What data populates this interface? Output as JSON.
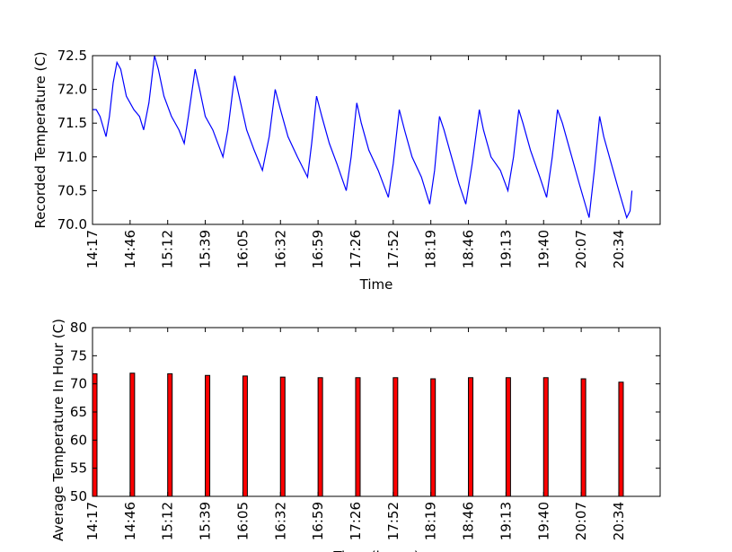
{
  "chart_data": [
    {
      "type": "line",
      "ylabel": "Recorded Temperature (C)",
      "xlabel": "Time",
      "color": "#0000ff",
      "xlim": [
        0,
        151
      ],
      "ylim": [
        70,
        72.5
      ],
      "xticks": [
        {
          "value": 0,
          "label": "14:17"
        },
        {
          "value": 10,
          "label": "14:46"
        },
        {
          "value": 20,
          "label": "15:12"
        },
        {
          "value": 30,
          "label": "15:39"
        },
        {
          "value": 40,
          "label": "16:05"
        },
        {
          "value": 50,
          "label": "16:32"
        },
        {
          "value": 60,
          "label": "16:59"
        },
        {
          "value": 70,
          "label": "17:26"
        },
        {
          "value": 80,
          "label": "17:52"
        },
        {
          "value": 90,
          "label": "18:19"
        },
        {
          "value": 100,
          "label": "18:46"
        },
        {
          "value": 110,
          "label": "19:13"
        },
        {
          "value": 120,
          "label": "19:40"
        },
        {
          "value": 130,
          "label": "20:07"
        },
        {
          "value": 140,
          "label": "20:34"
        }
      ],
      "yticks": [
        {
          "value": 70,
          "label": "70.0"
        },
        70.5,
        {
          "value": 71,
          "label": "71.0"
        },
        71.5,
        {
          "value": 72,
          "label": "72.0"
        },
        72.5
      ],
      "x": [
        0,
        1,
        2,
        3.6,
        4.5,
        5.5,
        6.5,
        7.5,
        9,
        11,
        12.5,
        13.6,
        15,
        16.5,
        17.5,
        19,
        21,
        23,
        24.4,
        25.5,
        27.3,
        28.5,
        30,
        32,
        34.7,
        36,
        37.8,
        39,
        41,
        43,
        45.2,
        47,
        48.6,
        50,
        52,
        54.5,
        57.2,
        58.3,
        59.6,
        61,
        63,
        65,
        67.5,
        68.8,
        70.3,
        71.5,
        73.5,
        76,
        78.7,
        80,
        81.6,
        83,
        85,
        87.5,
        89.7,
        91,
        92.3,
        93.5,
        95.5,
        97.5,
        99.3,
        101,
        102.9,
        104,
        106,
        108.5,
        110.5,
        112,
        113.4,
        114.5,
        116.5,
        119,
        120.8,
        122.3,
        123.7,
        125,
        127,
        129.5,
        132.1,
        133.5,
        134.9,
        136,
        138,
        140,
        142.1,
        143,
        143.5
      ],
      "values": [
        71.7,
        71.7,
        71.6,
        71.3,
        71.6,
        72.1,
        72.4,
        72.3,
        71.9,
        71.7,
        71.6,
        71.4,
        71.8,
        72.5,
        72.3,
        71.9,
        71.6,
        71.4,
        71.2,
        71.6,
        72.3,
        72.0,
        71.6,
        71.4,
        71.0,
        71.4,
        72.2,
        71.9,
        71.4,
        71.1,
        70.8,
        71.3,
        72.0,
        71.7,
        71.3,
        71.0,
        70.7,
        71.2,
        71.9,
        71.6,
        71.2,
        70.9,
        70.5,
        71.0,
        71.8,
        71.5,
        71.1,
        70.8,
        70.4,
        70.9,
        71.7,
        71.4,
        71.0,
        70.7,
        70.3,
        70.8,
        71.6,
        71.4,
        71.0,
        70.6,
        70.3,
        70.9,
        71.7,
        71.4,
        71.0,
        70.8,
        70.5,
        71.0,
        71.7,
        71.5,
        71.1,
        70.7,
        70.4,
        71.0,
        71.7,
        71.5,
        71.1,
        70.6,
        70.1,
        70.8,
        71.6,
        71.3,
        70.9,
        70.5,
        70.1,
        70.2,
        70.5
      ]
    },
    {
      "type": "bar",
      "ylabel": "Average Temperature In Hour (C)",
      "xlabel": "Time (hours)",
      "color": "#ff0000",
      "xlim": [
        0,
        151
      ],
      "ylim": [
        50,
        80
      ],
      "xticks": [
        {
          "value": 0,
          "label": "14:17"
        },
        {
          "value": 10,
          "label": "14:46"
        },
        {
          "value": 20,
          "label": "15:12"
        },
        {
          "value": 30,
          "label": "15:39"
        },
        {
          "value": 40,
          "label": "16:05"
        },
        {
          "value": 50,
          "label": "16:32"
        },
        {
          "value": 60,
          "label": "16:59"
        },
        {
          "value": 70,
          "label": "17:26"
        },
        {
          "value": 80,
          "label": "17:52"
        },
        {
          "value": 90,
          "label": "18:19"
        },
        {
          "value": 100,
          "label": "18:46"
        },
        {
          "value": 110,
          "label": "19:13"
        },
        {
          "value": 120,
          "label": "19:40"
        },
        {
          "value": 130,
          "label": "20:07"
        },
        {
          "value": 140,
          "label": "20:34"
        }
      ],
      "yticks": [
        50,
        55,
        60,
        65,
        70,
        75,
        80
      ],
      "x": [
        0,
        10,
        20,
        30,
        40,
        50,
        60,
        70,
        80,
        90,
        100,
        110,
        120,
        130,
        140
      ],
      "values": [
        71.8,
        71.9,
        71.8,
        71.5,
        71.4,
        71.2,
        71.1,
        71.1,
        71.1,
        70.9,
        71.1,
        71.1,
        71.1,
        70.9,
        70.3
      ]
    }
  ]
}
